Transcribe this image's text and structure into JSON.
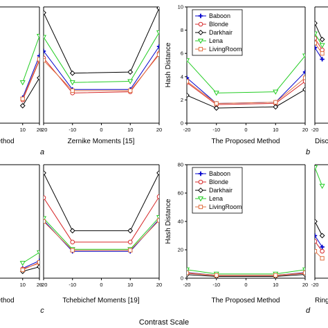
{
  "figure": {
    "footer_label": "Contrast Scale"
  },
  "series_styles": [
    {
      "name": "Baboon",
      "color": "#0000cc",
      "marker": "plus"
    },
    {
      "name": "Blonde",
      "color": "#d62728",
      "marker": "circle"
    },
    {
      "name": "Darkhair",
      "color": "#000000",
      "marker": "diamond"
    },
    {
      "name": "Lena",
      "color": "#22cc22",
      "marker": "triangle-down"
    },
    {
      "name": "LivingRoom",
      "color": "#e07040",
      "marker": "square"
    }
  ],
  "chart_data": [
    {
      "id": "top-left-partial",
      "type": "line",
      "xlabel": "ethod",
      "ylabel": "",
      "x": [
        10,
        20
      ],
      "x_ticks": [
        "10",
        "20"
      ],
      "series": [
        {
          "name": "Baboon",
          "values": [
            2.2,
            5.8
          ]
        },
        {
          "name": "Blonde",
          "values": [
            2.0,
            5.4
          ]
        },
        {
          "name": "Darkhair",
          "values": [
            1.5,
            3.9
          ]
        },
        {
          "name": "Lena",
          "values": [
            3.5,
            7.5
          ]
        },
        {
          "name": "LivingRoom",
          "values": [
            2.1,
            5.5
          ]
        }
      ]
    },
    {
      "id": "a",
      "panel_letter": "a",
      "type": "line",
      "xlabel": "Zernike Moments [15]",
      "x": [
        -20,
        -10,
        10,
        20
      ],
      "x_ticks": [
        "-20",
        "-10",
        "0",
        "10",
        "20"
      ],
      "xlim": [
        -20,
        20
      ],
      "series": [
        {
          "name": "Baboon",
          "values": [
            6.2,
            2.9,
            2.9,
            6.6
          ]
        },
        {
          "name": "Blonde",
          "values": [
            5.6,
            2.6,
            2.7,
            6.0
          ]
        },
        {
          "name": "Darkhair",
          "values": [
            9.5,
            4.3,
            4.4,
            9.9
          ]
        },
        {
          "name": "Lena",
          "values": [
            7.4,
            3.5,
            3.6,
            7.8
          ]
        },
        {
          "name": "LivingRoom",
          "values": [
            5.4,
            2.8,
            2.8,
            5.9
          ]
        }
      ]
    },
    {
      "id": "b",
      "panel_letter": "b",
      "type": "line",
      "xlabel": "The Proposed Method",
      "ylabel": "Hash Distance",
      "x": [
        -20,
        -10,
        10,
        20
      ],
      "x_ticks": [
        "-20",
        "-10",
        "0",
        "10",
        "20"
      ],
      "y_ticks": [
        "0",
        "2",
        "4",
        "6",
        "8",
        "10"
      ],
      "ylim": [
        0,
        10
      ],
      "legend": [
        "Baboon",
        "Blonde",
        "Darkhair",
        "Lena",
        "LivingRoom"
      ],
      "series": [
        {
          "name": "Baboon",
          "values": [
            3.9,
            1.7,
            1.8,
            4.4
          ]
        },
        {
          "name": "Blonde",
          "values": [
            3.5,
            1.6,
            1.7,
            3.6
          ]
        },
        {
          "name": "Darkhair",
          "values": [
            2.4,
            1.3,
            1.4,
            2.9
          ]
        },
        {
          "name": "Lena",
          "values": [
            5.4,
            2.6,
            2.7,
            5.8
          ]
        },
        {
          "name": "LivingRoom",
          "values": [
            3.6,
            1.7,
            1.8,
            3.9
          ]
        }
      ]
    },
    {
      "id": "top-right-partial",
      "type": "line",
      "xlabel": "Disc",
      "x": [
        -20,
        -15
      ],
      "x_ticks": [
        "-20"
      ],
      "series": [
        {
          "name": "Baboon",
          "values": [
            6.5,
            5.5
          ]
        },
        {
          "name": "Blonde",
          "values": [
            7.3,
            6.3
          ]
        },
        {
          "name": "Darkhair",
          "values": [
            8.6,
            7.2
          ]
        },
        {
          "name": "Lena",
          "values": [
            7.7,
            6.7
          ]
        },
        {
          "name": "LivingRoom",
          "values": [
            6.9,
            6.0
          ]
        }
      ]
    },
    {
      "id": "bottom-left-partial",
      "type": "line",
      "xlabel": "ethod",
      "x": [
        10,
        20
      ],
      "x_ticks": [
        "10",
        "20"
      ],
      "series": [
        {
          "name": "Baboon",
          "values": [
            1.3,
            2.3
          ]
        },
        {
          "name": "Blonde",
          "values": [
            1.2,
            2.0
          ]
        },
        {
          "name": "Darkhair",
          "values": [
            0.9,
            1.5
          ]
        },
        {
          "name": "Lena",
          "values": [
            2.0,
            3.4
          ]
        },
        {
          "name": "LivingRoom",
          "values": [
            1.1,
            2.1
          ]
        }
      ]
    },
    {
      "id": "c",
      "panel_letter": "c",
      "type": "line",
      "xlabel": "Tchebichef Moments [19]",
      "x": [
        -20,
        -10,
        10,
        20
      ],
      "x_ticks": [
        "-20",
        "-10",
        "0",
        "10",
        "20"
      ],
      "xlim": [
        -20,
        20
      ],
      "series": [
        {
          "name": "Baboon",
          "values": [
            5.6,
            2.6,
            2.6,
            5.7
          ]
        },
        {
          "name": "Blonde",
          "values": [
            7.8,
            3.5,
            3.5,
            7.9
          ]
        },
        {
          "name": "Darkhair",
          "values": [
            10.2,
            4.6,
            4.6,
            10.2
          ]
        },
        {
          "name": "Lena",
          "values": [
            5.8,
            2.8,
            2.8,
            5.9
          ]
        },
        {
          "name": "LivingRoom",
          "values": [
            5.5,
            2.7,
            2.7,
            5.6
          ]
        }
      ]
    },
    {
      "id": "d",
      "panel_letter": "d",
      "type": "line",
      "xlabel": "The Proposed Method",
      "ylabel": "Hash Distance",
      "x": [
        -20,
        -10,
        10,
        20
      ],
      "x_ticks": [
        "-20",
        "-10",
        "0",
        "10",
        "20"
      ],
      "y_ticks": [
        "0",
        "20",
        "40",
        "60",
        "80"
      ],
      "ylim": [
        0,
        80
      ],
      "legend": [
        "Baboon",
        "Blonde",
        "Darkhair",
        "Lena",
        "LivingRoom"
      ],
      "series": [
        {
          "name": "Baboon",
          "values": [
            4.0,
            2.0,
            2.0,
            4.0
          ]
        },
        {
          "name": "Blonde",
          "values": [
            3.5,
            1.8,
            1.8,
            3.5
          ]
        },
        {
          "name": "Darkhair",
          "values": [
            2.5,
            1.2,
            1.2,
            2.6
          ]
        },
        {
          "name": "Lena",
          "values": [
            6.0,
            3.0,
            3.0,
            6.0
          ]
        },
        {
          "name": "LivingRoom",
          "values": [
            3.8,
            2.0,
            2.0,
            3.8
          ]
        }
      ]
    },
    {
      "id": "bottom-right-partial",
      "type": "line",
      "xlabel": "Ring",
      "x": [
        -20,
        -15
      ],
      "x_ticks": [
        "-20"
      ],
      "series": [
        {
          "name": "Baboon",
          "values": [
            30,
            22
          ]
        },
        {
          "name": "Blonde",
          "values": [
            26,
            19
          ]
        },
        {
          "name": "Darkhair",
          "values": [
            40,
            30
          ]
        },
        {
          "name": "Lena",
          "values": [
            78,
            65
          ]
        },
        {
          "name": "LivingRoom",
          "values": [
            19,
            14
          ]
        }
      ]
    }
  ]
}
